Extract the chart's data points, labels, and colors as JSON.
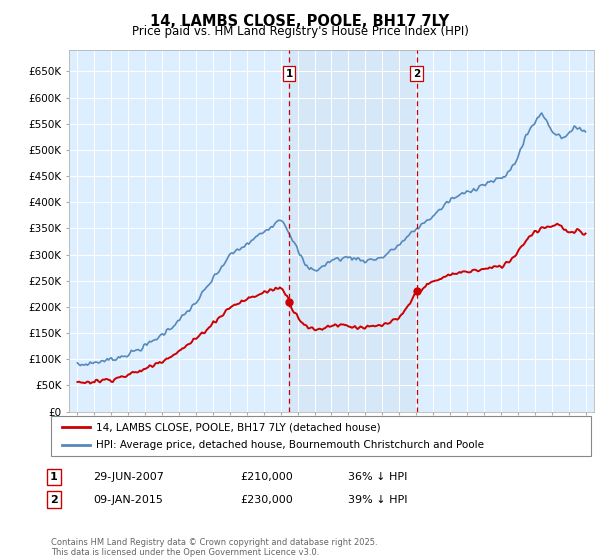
{
  "title": "14, LAMBS CLOSE, POOLE, BH17 7LY",
  "subtitle": "Price paid vs. HM Land Registry's House Price Index (HPI)",
  "ylabel_ticks": [
    "£0",
    "£50K",
    "£100K",
    "£150K",
    "£200K",
    "£250K",
    "£300K",
    "£350K",
    "£400K",
    "£450K",
    "£500K",
    "£550K",
    "£600K",
    "£650K"
  ],
  "ytick_vals": [
    0,
    50000,
    100000,
    150000,
    200000,
    250000,
    300000,
    350000,
    400000,
    450000,
    500000,
    550000,
    600000,
    650000
  ],
  "hpi_color": "#5588bb",
  "price_color": "#cc0000",
  "shade_color": "#d6e8f7",
  "marker1_date": 2007.49,
  "marker1_price": 210000,
  "marker1_label": "29-JUN-2007",
  "marker1_text": "£210,000",
  "marker1_pct": "36% ↓ HPI",
  "marker2_date": 2015.03,
  "marker2_price": 230000,
  "marker2_label": "09-JAN-2015",
  "marker2_text": "£230,000",
  "marker2_pct": "39% ↓ HPI",
  "legend_label1": "14, LAMBS CLOSE, POOLE, BH17 7LY (detached house)",
  "legend_label2": "HPI: Average price, detached house, Bournemouth Christchurch and Poole",
  "footnote": "Contains HM Land Registry data © Crown copyright and database right 2025.\nThis data is licensed under the Open Government Licence v3.0.",
  "xlim": [
    1994.5,
    2025.5
  ],
  "ylim": [
    0,
    690000
  ]
}
